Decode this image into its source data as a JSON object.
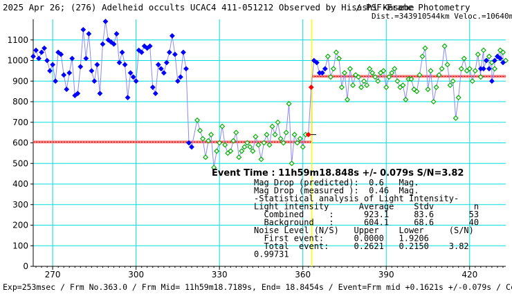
{
  "chart_data": {
    "type": "scatter",
    "title": "2025 Apr 26; (276) Adelheid occults UCAC4 411-051212 Observed by Hisashi Kasebe",
    "title_right": "/ PSF-Frame Photometry",
    "subtitle": "Dist.=343910544km Veloc.=10640m/s",
    "footer": "Exp=253msec / Frm No.363.0 / Frm Mid= 11h59m18.7189s,  End= 18.8454s / Event=Frm mid +0.1621s +/-0.079s / CctAngle=0",
    "xlim": [
      263,
      433
    ],
    "ylim": [
      0,
      1200
    ],
    "x_ticks": [
      270,
      300,
      330,
      360,
      390,
      420
    ],
    "y_ticks": [
      0,
      100,
      200,
      300,
      400,
      500,
      600,
      700,
      800,
      900,
      1000,
      1100
    ],
    "grid": true,
    "event_x": 363.16,
    "background_level": 604.1,
    "combined_level": 923.1,
    "event_error": [
      361.5,
      364.8
    ],
    "colors": {
      "grid": "#00dede",
      "before": "#0000ff",
      "dip": "#00b000",
      "after": "#00b000",
      "line": "#8888ff",
      "level": "#ff0000",
      "event": "#ffff00"
    },
    "series": [
      {
        "color": "#0000ff",
        "marker": "diamond-filled",
        "x": [
          263,
          264,
          265,
          266,
          267,
          268,
          269,
          270,
          271,
          272,
          273,
          274,
          275,
          276,
          277,
          278,
          279,
          280,
          281,
          282,
          283,
          284,
          285,
          286,
          287,
          288,
          289,
          290,
          291,
          292,
          293,
          294,
          295,
          296,
          297,
          298,
          299,
          300,
          301,
          302,
          303,
          304,
          305,
          306,
          307,
          308,
          309,
          310,
          311,
          312,
          313,
          314,
          315,
          316,
          317,
          318,
          319,
          320
        ],
        "y": [
          1020,
          1050,
          1010,
          1040,
          1060,
          1000,
          950,
          980,
          900,
          1040,
          1030,
          930,
          860,
          940,
          1010,
          830,
          840,
          970,
          1150,
          1010,
          1130,
          950,
          900,
          980,
          840,
          1080,
          1190,
          1100,
          1090,
          1080,
          1130,
          990,
          1040,
          980,
          820,
          940,
          920,
          900,
          1050,
          1040,
          1070,
          1060,
          1070,
          870,
          840,
          980,
          960,
          940,
          990,
          1040,
          1120,
          1030,
          900,
          920,
          1040,
          960,
          600,
          580
        ],
        "shown_x": [
          263,
          264,
          265,
          266,
          267,
          268,
          269,
          270,
          271,
          272,
          273,
          274,
          275,
          276,
          277,
          278,
          279,
          280,
          281,
          282,
          283,
          284,
          285,
          286,
          287,
          288,
          289,
          290,
          291,
          292,
          293,
          294,
          295,
          296,
          297,
          298,
          299,
          300,
          301,
          302,
          303,
          304,
          305,
          306,
          307,
          308,
          309,
          310,
          311,
          312,
          313,
          314,
          315,
          316,
          317,
          318,
          320,
          321
        ]
      },
      {
        "color": "#00b000",
        "marker": "diamond-open",
        "x": [
          322,
          323,
          324,
          325,
          326,
          327,
          328,
          329,
          330,
          331,
          332,
          333,
          334,
          335,
          336,
          337,
          338,
          339,
          340,
          341,
          342,
          343,
          344,
          345,
          346,
          347,
          348,
          349,
          350,
          351,
          352,
          353,
          354,
          355,
          356,
          357,
          358,
          359,
          360,
          361
        ],
        "y": [
          710,
          660,
          620,
          530,
          610,
          640,
          480,
          560,
          600,
          680,
          590,
          550,
          560,
          610,
          650,
          530,
          560,
          580,
          600,
          580,
          560,
          630,
          590,
          520,
          600,
          640,
          590,
          680,
          640,
          700,
          620,
          600,
          650,
          790,
          500,
          640,
          600,
          620,
          580,
          640
        ]
      },
      {
        "color": "#ff0000",
        "marker": "diamond-filled",
        "x": [
          362,
          363
        ],
        "y": [
          640,
          870
        ]
      },
      {
        "color": "#0000ff",
        "marker": "diamond-filled",
        "x": [
          364,
          365,
          366,
          367,
          368
        ],
        "y": [
          1000,
          990,
          940,
          940,
          960
        ]
      },
      {
        "color": "#00b000",
        "marker": "diamond-open",
        "x": [
          369,
          370,
          371,
          372,
          373,
          374,
          375,
          376,
          377,
          378,
          379,
          380,
          381,
          382,
          383,
          384,
          385,
          386,
          387,
          388,
          389,
          390,
          391,
          392,
          393,
          394,
          395,
          396,
          397,
          398,
          399,
          400,
          401,
          402,
          403,
          404,
          405,
          406,
          407,
          408,
          409,
          410,
          411,
          412,
          413,
          414,
          415,
          416,
          417,
          418,
          419,
          420,
          421,
          422,
          423,
          424,
          425,
          426,
          427,
          428,
          429,
          430,
          431,
          432,
          433
        ],
        "y": [
          1020,
          920,
          960,
          1040,
          1010,
          870,
          940,
          810,
          960,
          880,
          930,
          920,
          870,
          900,
          880,
          960,
          940,
          920,
          900,
          940,
          950,
          870,
          920,
          940,
          960,
          900,
          870,
          880,
          810,
          910,
          910,
          860,
          850,
          930,
          1020,
          1060,
          860,
          950,
          800,
          870,
          930,
          960,
          1070,
          980,
          880,
          900,
          720,
          820,
          960,
          1010,
          950,
          960,
          900,
          950,
          1030,
          920,
          1050,
          1000,
          1020,
          990,
          960,
          1020,
          1050,
          1040,
          1000
        ]
      },
      {
        "color": "#0000ff",
        "marker": "diamond-filled",
        "x": [
          424,
          425,
          426,
          427,
          428,
          429,
          430,
          431,
          432
        ],
        "y": [
          960,
          960,
          1000,
          960,
          900,
          1000,
          1020,
          1010,
          990
        ]
      }
    ]
  },
  "annotations": {
    "event_time": "Event Time : 11h59m18.848s  +/- 0.079s  S/N=3.82",
    "lines": [
      "Mag Drop (predicted):  0.6   Mag.",
      "Mag Drop (measured ):  0.46  Mag.",
      "-Statistical analysis of Light Intensity-",
      "Light intensity      Average    Stdv        n",
      "  Combined     :      923.1     83.6       53",
      "  Background   :      604.1     68.6       40",
      "Noise Level (N/S)   Upper    Lower     (S/N)",
      "  First event:      0.0000   1.9206",
      "  Total  event:     0.2621   0.2150    3.82",
      "0.99731"
    ]
  }
}
